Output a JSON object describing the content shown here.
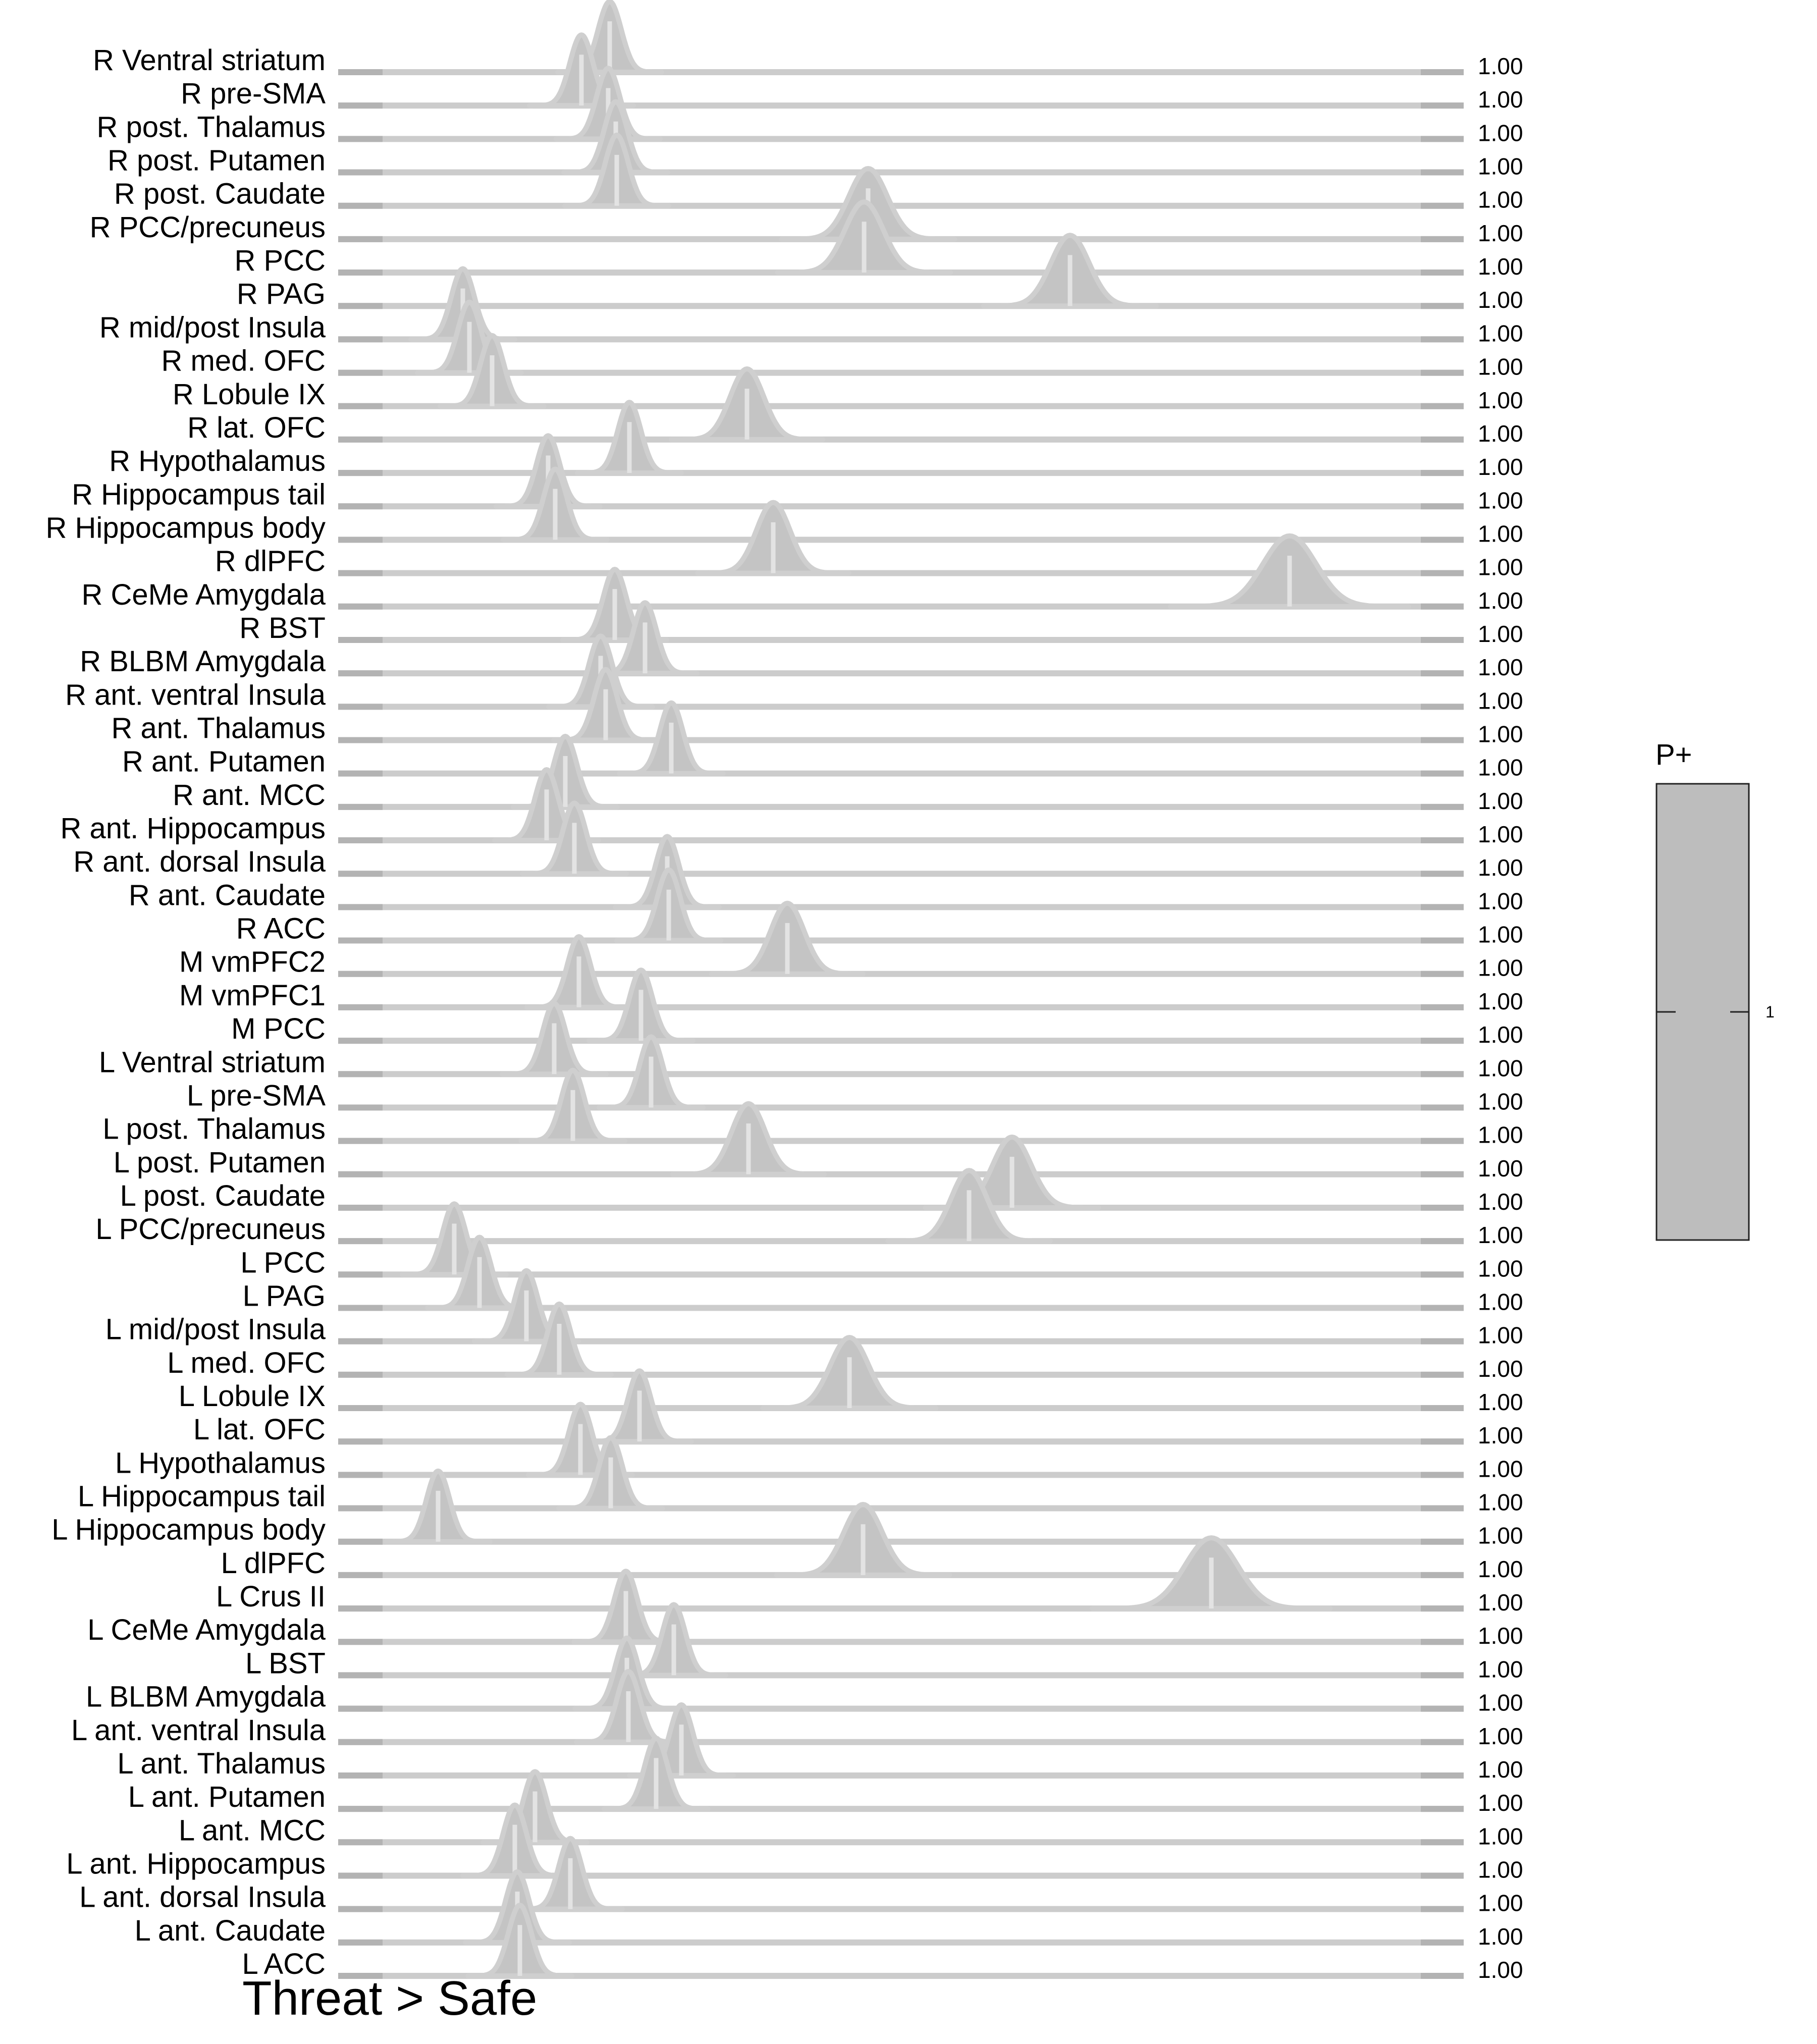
{
  "chart_data": {
    "type": "ridgeline",
    "title": "Threat > Safe",
    "xlabel": "",
    "ylabel": "",
    "x_units": "horizontal position of each posterior distribution relative to the row baseline (no axis printed)",
    "rows": [
      {
        "label": "R Ventral striatum",
        "peak": 1.0,
        "sd": 0.04,
        "value": "1.00"
      },
      {
        "label": "R pre-SMA",
        "peak": 1.0,
        "sd": 0.04,
        "value": "1.00"
      },
      {
        "label": "R post. Thalamus",
        "peak": 1.0,
        "sd": 0.04,
        "value": "1.00"
      },
      {
        "label": "R post. Putamen",
        "peak": 1.0,
        "sd": 0.04,
        "value": "1.00"
      },
      {
        "label": "R post. Caudate",
        "peak": 1.0,
        "sd": 0.04,
        "value": "1.00"
      },
      {
        "label": "R PCC/precuneus",
        "peak": 1.0,
        "sd": 0.04,
        "value": "1.00"
      },
      {
        "label": "R PCC",
        "peak": 1.0,
        "sd": 0.04,
        "value": "1.00"
      },
      {
        "label": "R PAG",
        "peak": 1.0,
        "sd": 0.04,
        "value": "1.00"
      },
      {
        "label": "R mid/post Insula",
        "peak": 1.0,
        "sd": 0.04,
        "value": "1.00"
      },
      {
        "label": "R med. OFC",
        "peak": 1.0,
        "sd": 0.04,
        "value": "1.00"
      },
      {
        "label": "R Lobule IX",
        "peak": 1.0,
        "sd": 0.04,
        "value": "1.00"
      },
      {
        "label": "R lat. OFC",
        "peak": 1.0,
        "sd": 0.04,
        "value": "1.00"
      },
      {
        "label": "R Hypothalamus",
        "peak": 1.0,
        "sd": 0.04,
        "value": "1.00"
      },
      {
        "label": "R Hippocampus tail",
        "peak": 1.0,
        "sd": 0.04,
        "value": "1.00"
      },
      {
        "label": "R Hippocampus body",
        "peak": 1.0,
        "sd": 0.04,
        "value": "1.00"
      },
      {
        "label": "R dlPFC",
        "peak": 1.0,
        "sd": 0.04,
        "value": "1.00"
      },
      {
        "label": "R CeMe Amygdala",
        "peak": 1.0,
        "sd": 0.04,
        "value": "1.00"
      },
      {
        "label": "R BST",
        "peak": 1.0,
        "sd": 0.04,
        "value": "1.00"
      },
      {
        "label": "R BLBM Amygdala",
        "peak": 1.0,
        "sd": 0.04,
        "value": "1.00"
      },
      {
        "label": "R ant. ventral Insula",
        "peak": 1.0,
        "sd": 0.04,
        "value": "1.00"
      },
      {
        "label": "R ant. Thalamus",
        "peak": 1.0,
        "sd": 0.04,
        "value": "1.00"
      },
      {
        "label": "R ant. Putamen",
        "peak": 1.0,
        "sd": 0.04,
        "value": "1.00"
      },
      {
        "label": "R ant. MCC",
        "peak": 1.0,
        "sd": 0.04,
        "value": "1.00"
      },
      {
        "label": "R ant. Hippocampus",
        "peak": 1.0,
        "sd": 0.04,
        "value": "1.00"
      },
      {
        "label": "R ant. dorsal Insula",
        "peak": 1.0,
        "sd": 0.04,
        "value": "1.00"
      },
      {
        "label": "R ant. Caudate",
        "peak": 1.0,
        "sd": 0.04,
        "value": "1.00"
      },
      {
        "label": "R ACC",
        "peak": 1.0,
        "sd": 0.04,
        "value": "1.00"
      },
      {
        "label": "M vmPFC2",
        "peak": 1.0,
        "sd": 0.04,
        "value": "1.00"
      },
      {
        "label": "M vmPFC1",
        "peak": 1.0,
        "sd": 0.04,
        "value": "1.00"
      },
      {
        "label": "M PCC",
        "peak": 1.0,
        "sd": 0.04,
        "value": "1.00"
      },
      {
        "label": "L Ventral striatum",
        "peak": 1.0,
        "sd": 0.04,
        "value": "1.00"
      },
      {
        "label": "L pre-SMA",
        "peak": 1.0,
        "sd": 0.04,
        "value": "1.00"
      },
      {
        "label": "L post. Thalamus",
        "peak": 1.0,
        "sd": 0.04,
        "value": "1.00"
      },
      {
        "label": "L post. Putamen",
        "peak": 1.0,
        "sd": 0.04,
        "value": "1.00"
      },
      {
        "label": "L post. Caudate",
        "peak": 1.0,
        "sd": 0.04,
        "value": "1.00"
      },
      {
        "label": "L PCC/precuneus",
        "peak": 1.0,
        "sd": 0.04,
        "value": "1.00"
      },
      {
        "label": "L PCC",
        "peak": 1.0,
        "sd": 0.04,
        "value": "1.00"
      },
      {
        "label": "L PAG",
        "peak": 1.0,
        "sd": 0.04,
        "value": "1.00"
      },
      {
        "label": "L mid/post Insula",
        "peak": 1.0,
        "sd": 0.04,
        "value": "1.00"
      },
      {
        "label": "L med. OFC",
        "peak": 1.0,
        "sd": 0.04,
        "value": "1.00"
      },
      {
        "label": "L Lobule IX",
        "peak": 1.0,
        "sd": 0.04,
        "value": "1.00"
      },
      {
        "label": "L lat. OFC",
        "peak": 1.0,
        "sd": 0.04,
        "value": "1.00"
      },
      {
        "label": "L Hypothalamus",
        "peak": 1.0,
        "sd": 0.04,
        "value": "1.00"
      },
      {
        "label": "L Hippocampus tail",
        "peak": 1.0,
        "sd": 0.04,
        "value": "1.00"
      },
      {
        "label": "L Hippocampus body",
        "peak": 1.0,
        "sd": 0.04,
        "value": "1.00"
      },
      {
        "label": "L dlPFC",
        "peak": 1.0,
        "sd": 0.04,
        "value": "1.00"
      },
      {
        "label": "L Crus II",
        "peak": 1.0,
        "sd": 0.04,
        "value": "1.00"
      },
      {
        "label": "L CeMe Amygdala",
        "peak": 1.0,
        "sd": 0.04,
        "value": "1.00"
      },
      {
        "label": "L BST",
        "peak": 1.0,
        "sd": 0.04,
        "value": "1.00"
      },
      {
        "label": "L BLBM Amygdala",
        "peak": 1.0,
        "sd": 0.04,
        "value": "1.00"
      },
      {
        "label": "L ant. ventral Insula",
        "peak": 1.0,
        "sd": 0.04,
        "value": "1.00"
      },
      {
        "label": "L ant. Thalamus",
        "peak": 1.0,
        "sd": 0.04,
        "value": "1.00"
      },
      {
        "label": "L ant. Putamen",
        "peak": 1.0,
        "sd": 0.04,
        "value": "1.00"
      },
      {
        "label": "L ant. MCC",
        "peak": 1.0,
        "sd": 0.04,
        "value": "1.00"
      },
      {
        "label": "L ant. Hippocampus",
        "peak": 1.0,
        "sd": 0.04,
        "value": "1.00"
      },
      {
        "label": "L ant. dorsal Insula",
        "peak": 1.0,
        "sd": 0.04,
        "value": "1.00"
      },
      {
        "label": "L ant. Caudate",
        "peak": 1.0,
        "sd": 0.04,
        "value": "1.00"
      },
      {
        "label": "L ACC",
        "peak": 1.0,
        "sd": 0.04,
        "value": "1.00"
      }
    ],
    "colorbar": {
      "title": "P+",
      "tick_label": "1",
      "fill_color": "#bdbdbd"
    },
    "colors": {
      "ridge_fill": "#c4c4c4",
      "ridge_stroke": "#cfcfcf",
      "baseline": "#cccccc",
      "baseline_ends": "#b3b3b3",
      "median_line": "#e3e3e3",
      "text": "#000000"
    }
  }
}
